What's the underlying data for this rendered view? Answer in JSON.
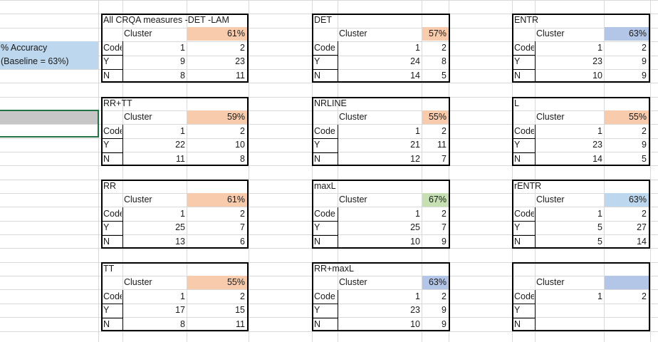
{
  "accuracy": {
    "line1": "% Accuracy",
    "line2": "(Baseline = 63%)"
  },
  "colors": {
    "orange": "#f8cbad",
    "green": "#c6e0b4",
    "blue": "#b4c6e7",
    "lightblue": "#bdd7ee"
  },
  "tables": [
    {
      "title": "All CRQA measures -DET -LAM",
      "cluster_label": "Cluster",
      "pct": "61%",
      "pct_color": "orange",
      "code_label": "Code",
      "c1": "1",
      "c2": "2",
      "y_label": "Y",
      "y1": "9",
      "y2": "23",
      "n_label": "N",
      "n1": "8",
      "n2": "11"
    },
    {
      "title": "DET",
      "cluster_label": "Cluster",
      "pct": "57%",
      "pct_color": "orange",
      "code_label": "Code",
      "c1": "1",
      "c2": "2",
      "y_label": "Y",
      "y1": "24",
      "y2": "8",
      "n_label": "N",
      "n1": "14",
      "n2": "5"
    },
    {
      "title": "ENTR",
      "cluster_label": "Cluster",
      "pct": "63%",
      "pct_color": "blue",
      "code_label": "Code",
      "c1": "1",
      "c2": "2",
      "y_label": "Y",
      "y1": "23",
      "y2": "9",
      "n_label": "N",
      "n1": "10",
      "n2": "9"
    },
    {
      "title": "RR+TT",
      "cluster_label": "Cluster",
      "pct": "59%",
      "pct_color": "orange",
      "code_label": "Code",
      "c1": "1",
      "c2": "2",
      "y_label": "Y",
      "y1": "22",
      "y2": "10",
      "n_label": "N",
      "n1": "11",
      "n2": "8"
    },
    {
      "title": "NRLINE",
      "cluster_label": "Cluster",
      "pct": "55%",
      "pct_color": "orange",
      "code_label": "Code",
      "c1": "1",
      "c2": "2",
      "y_label": "Y",
      "y1": "21",
      "y2": "11",
      "n_label": "N",
      "n1": "12",
      "n2": "7"
    },
    {
      "title": "L",
      "cluster_label": "Cluster",
      "pct": "55%",
      "pct_color": "orange",
      "code_label": "Code",
      "c1": "1",
      "c2": "2",
      "y_label": "Y",
      "y1": "23",
      "y2": "9",
      "n_label": "N",
      "n1": "14",
      "n2": "5"
    },
    {
      "title": "RR",
      "cluster_label": "Cluster",
      "pct": "61%",
      "pct_color": "orange",
      "code_label": "Code",
      "c1": "1",
      "c2": "2",
      "y_label": "Y",
      "y1": "25",
      "y2": "7",
      "n_label": "N",
      "n1": "13",
      "n2": "6"
    },
    {
      "title": "maxL",
      "cluster_label": "Cluster",
      "pct": "67%",
      "pct_color": "green",
      "code_label": "Code",
      "c1": "1",
      "c2": "2",
      "y_label": "Y",
      "y1": "25",
      "y2": "7",
      "n_label": "N",
      "n1": "10",
      "n2": "9"
    },
    {
      "title": "rENTR",
      "cluster_label": "Cluster",
      "pct": "63%",
      "pct_color": "lightblue",
      "code_label": "Code",
      "c1": "1",
      "c2": "2",
      "y_label": "Y",
      "y1": "5",
      "y2": "27",
      "n_label": "N",
      "n1": "5",
      "n2": "14"
    },
    {
      "title": "TT",
      "cluster_label": "Cluster",
      "pct": "55%",
      "pct_color": "orange",
      "code_label": "Code",
      "c1": "1",
      "c2": "2",
      "y_label": "Y",
      "y1": "17",
      "y2": "15",
      "n_label": "N",
      "n1": "8",
      "n2": "11"
    },
    {
      "title": "RR+maxL",
      "cluster_label": "Cluster",
      "pct": "63%",
      "pct_color": "blue",
      "code_label": "Code",
      "c1": "1",
      "c2": "2",
      "y_label": "Y",
      "y1": "23",
      "y2": "9",
      "n_label": "N",
      "n1": "10",
      "n2": "9"
    },
    {
      "title": "",
      "cluster_label": "Cluster",
      "pct": "",
      "pct_color": "blue",
      "code_label": "Code",
      "c1": "1",
      "c2": "2",
      "y_label": "Y",
      "y1": "",
      "y2": "",
      "n_label": "N",
      "n1": "",
      "n2": ""
    }
  ]
}
